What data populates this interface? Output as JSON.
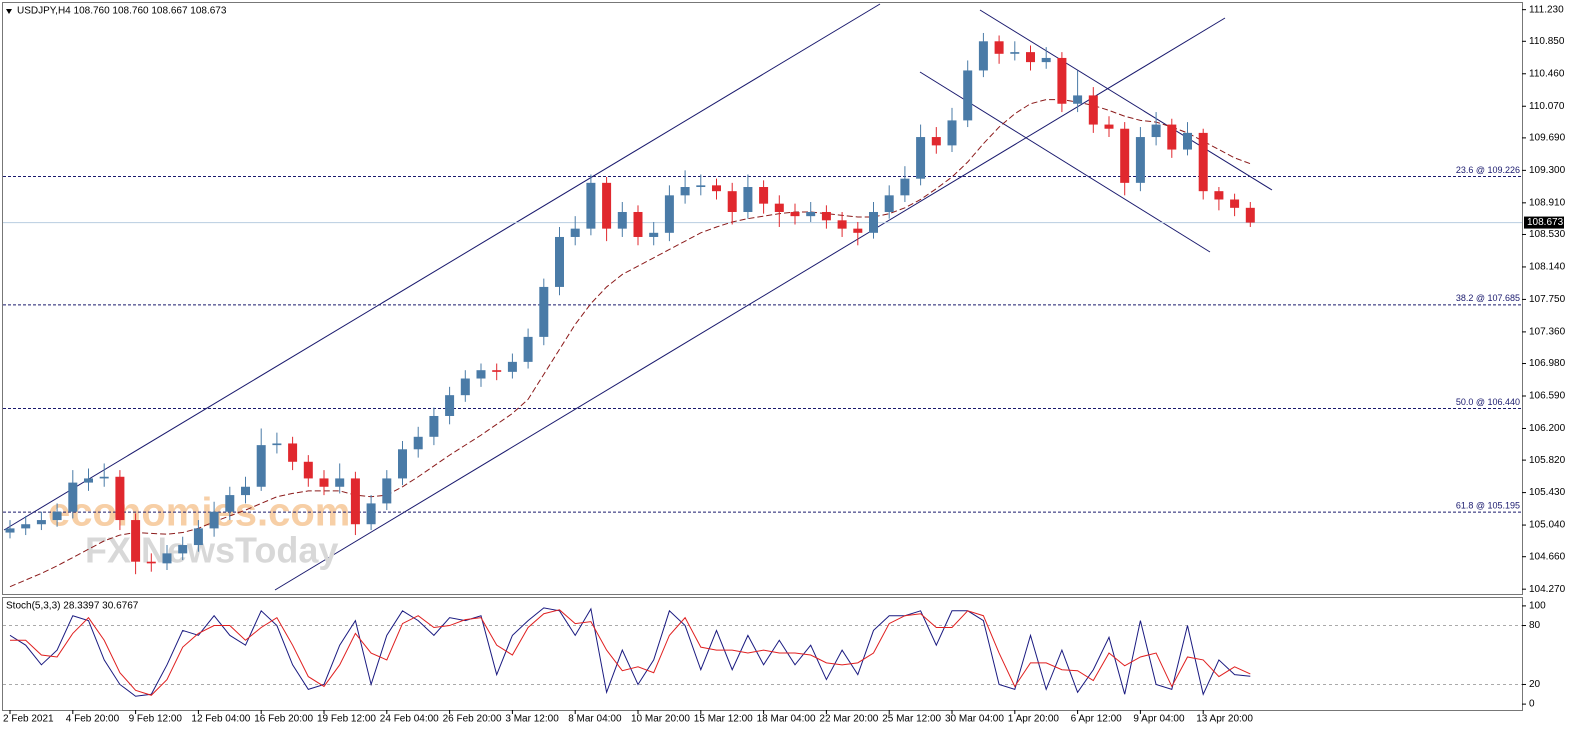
{
  "chart_data": [
    {
      "type": "candlestick",
      "title": "USDJPY,H4  108.760 108.760 108.667 108.673",
      "categories": [
        "2 Feb 2021",
        null,
        null,
        null,
        "4 Feb 20:00",
        null,
        null,
        null,
        "9 Feb 12:00",
        null,
        null,
        null,
        "12 Feb 04:00",
        null,
        null,
        null,
        "16 Feb 20:00",
        null,
        null,
        null,
        "19 Feb 12:00",
        null,
        null,
        null,
        "24 Feb 04:00",
        null,
        null,
        null,
        "26 Feb 20:00",
        null,
        null,
        null,
        "3 Mar 12:00",
        null,
        null,
        null,
        "8 Mar 04:00",
        null,
        null,
        null,
        "10 Mar 20:00",
        null,
        null,
        null,
        "15 Mar 12:00",
        null,
        null,
        null,
        "18 Mar 04:00",
        null,
        null,
        null,
        "22 Mar 20:00",
        null,
        null,
        null,
        "25 Mar 12:00",
        null,
        null,
        null,
        "30 Mar 04:00",
        null,
        null,
        null,
        "1 Apr 20:00",
        null,
        null,
        null,
        "6 Apr 12:00",
        null,
        null,
        null,
        "9 Apr 04:00",
        null,
        null,
        null,
        "13 Apr 20:00",
        null,
        null,
        null
      ],
      "open": [
        104.95,
        105.0,
        105.05,
        105.1,
        105.2,
        105.55,
        105.6,
        105.62,
        105.1,
        104.6,
        104.58,
        104.7,
        104.8,
        105.0,
        105.2,
        105.4,
        105.5,
        106.0,
        106.02,
        105.8,
        105.6,
        105.5,
        105.6,
        105.05,
        105.3,
        105.6,
        105.95,
        106.1,
        106.35,
        106.6,
        106.8,
        106.9,
        106.88,
        107.0,
        107.3,
        107.9,
        108.5,
        108.6,
        109.15,
        108.6,
        108.8,
        108.5,
        108.55,
        109.0,
        109.1,
        109.12,
        109.05,
        108.8,
        109.1,
        108.9,
        108.8,
        108.75,
        108.8,
        108.7,
        108.6,
        108.55,
        108.8,
        109.0,
        109.2,
        109.7,
        109.6,
        109.9,
        110.5,
        110.85,
        110.7,
        110.72,
        110.6,
        110.65,
        110.1,
        110.2,
        109.85,
        109.8,
        109.15,
        109.7,
        109.85,
        109.55,
        109.75,
        109.05,
        108.95,
        108.85
      ],
      "high": [
        105.1,
        105.15,
        105.2,
        105.3,
        105.7,
        105.72,
        105.78,
        105.7,
        105.18,
        104.7,
        104.8,
        104.9,
        105.1,
        105.32,
        105.5,
        105.62,
        106.2,
        106.15,
        106.1,
        105.88,
        105.7,
        105.78,
        105.68,
        105.4,
        105.7,
        106.05,
        106.22,
        106.45,
        106.7,
        106.9,
        106.98,
        106.98,
        107.1,
        107.4,
        108.0,
        108.62,
        108.75,
        109.25,
        109.22,
        108.92,
        108.88,
        108.68,
        109.12,
        109.3,
        109.25,
        109.2,
        109.15,
        109.25,
        109.18,
        109.0,
        108.9,
        108.92,
        108.88,
        108.8,
        108.68,
        108.92,
        109.12,
        109.35,
        109.85,
        109.82,
        110.05,
        110.62,
        110.95,
        110.92,
        110.85,
        110.8,
        110.78,
        110.72,
        110.5,
        110.3,
        109.95,
        109.88,
        109.82,
        110.0,
        109.92,
        109.88,
        109.8,
        109.1,
        109.02,
        108.92
      ],
      "low": [
        104.88,
        104.92,
        104.98,
        105.02,
        105.12,
        105.45,
        105.5,
        104.98,
        104.45,
        104.48,
        104.5,
        104.62,
        104.72,
        104.9,
        105.1,
        105.3,
        105.45,
        105.9,
        105.7,
        105.5,
        105.4,
        105.42,
        104.92,
        104.98,
        105.22,
        105.52,
        105.85,
        106.0,
        106.25,
        106.52,
        106.7,
        106.78,
        106.8,
        106.92,
        107.2,
        107.8,
        108.4,
        108.52,
        108.45,
        108.5,
        108.4,
        108.4,
        108.45,
        108.9,
        109.0,
        108.95,
        108.65,
        108.72,
        108.78,
        108.62,
        108.65,
        108.68,
        108.6,
        108.5,
        108.4,
        108.48,
        108.72,
        108.92,
        109.12,
        109.5,
        109.52,
        109.82,
        110.42,
        110.58,
        110.62,
        110.5,
        110.52,
        110.0,
        110.0,
        109.75,
        109.7,
        109.0,
        109.05,
        109.6,
        109.45,
        109.48,
        108.95,
        108.82,
        108.75,
        108.62
      ],
      "close": [
        105.0,
        105.05,
        105.1,
        105.2,
        105.55,
        105.6,
        105.62,
        105.1,
        104.6,
        104.58,
        104.7,
        104.8,
        105.0,
        105.2,
        105.4,
        105.5,
        106.0,
        106.02,
        105.8,
        105.6,
        105.5,
        105.6,
        105.05,
        105.3,
        105.6,
        105.95,
        106.1,
        106.35,
        106.6,
        106.8,
        106.9,
        106.88,
        107.0,
        107.3,
        107.9,
        108.5,
        108.6,
        109.15,
        108.6,
        108.8,
        108.5,
        108.55,
        109.0,
        109.1,
        109.12,
        109.05,
        108.8,
        109.1,
        108.9,
        108.8,
        108.75,
        108.8,
        108.7,
        108.6,
        108.55,
        108.8,
        109.0,
        109.2,
        109.7,
        109.6,
        109.9,
        110.5,
        110.85,
        110.7,
        110.72,
        110.6,
        110.65,
        110.1,
        110.2,
        109.85,
        109.8,
        109.15,
        109.7,
        109.85,
        109.55,
        109.75,
        109.05,
        108.95,
        108.85,
        108.673
      ],
      "up_color": "#4a7ba7",
      "down_color": "#e0282e",
      "moving_average": {
        "color": "#8b1a1a",
        "values": [
          104.3,
          104.38,
          104.46,
          104.55,
          104.65,
          104.75,
          104.85,
          104.92,
          104.95,
          104.94,
          104.93,
          104.95,
          105.0,
          105.08,
          105.15,
          105.22,
          105.3,
          105.38,
          105.42,
          105.45,
          105.45,
          105.45,
          105.4,
          105.38,
          105.4,
          105.5,
          105.62,
          105.75,
          105.88,
          106.0,
          106.12,
          106.25,
          106.38,
          106.55,
          106.85,
          107.15,
          107.45,
          107.7,
          107.9,
          108.05,
          108.15,
          108.25,
          108.35,
          108.45,
          108.55,
          108.62,
          108.68,
          108.72,
          108.75,
          108.78,
          108.8,
          108.8,
          108.78,
          108.76,
          108.74,
          108.74,
          108.78,
          108.85,
          108.95,
          109.08,
          109.22,
          109.4,
          109.62,
          109.82,
          109.98,
          110.1,
          110.15,
          110.15,
          110.12,
          110.08,
          110.02,
          109.95,
          109.9,
          109.88,
          109.82,
          109.75,
          109.65,
          109.55,
          109.45,
          109.38
        ]
      },
      "ylim": [
        104.2,
        111.31
      ],
      "yticks": [
        {
          "value": 111.23,
          "label": "111.230"
        },
        {
          "value": 110.85,
          "label": "110.850"
        },
        {
          "value": 110.46,
          "label": "110.460"
        },
        {
          "value": 110.07,
          "label": "110.070"
        },
        {
          "value": 109.69,
          "label": "109.690"
        },
        {
          "value": 109.3,
          "label": "109.300"
        },
        {
          "value": 108.91,
          "label": "108.910"
        },
        {
          "value": 108.53,
          "label": "108.530"
        },
        {
          "value": 108.14,
          "label": "108.140"
        },
        {
          "value": 107.75,
          "label": "107.750"
        },
        {
          "value": 107.36,
          "label": "107.360"
        },
        {
          "value": 106.98,
          "label": "106.980"
        },
        {
          "value": 106.59,
          "label": "106.590"
        },
        {
          "value": 106.2,
          "label": "106.200"
        },
        {
          "value": 105.82,
          "label": "105.820"
        },
        {
          "value": 105.43,
          "label": "105.430"
        },
        {
          "value": 105.04,
          "label": "105.040"
        },
        {
          "value": 104.66,
          "label": "104.660"
        },
        {
          "value": 104.27,
          "label": "104.270"
        }
      ],
      "levels": [
        {
          "value": 109.226,
          "label": "23.6 @ 109.226"
        },
        {
          "value": 107.685,
          "label": "38.2 @ 107.685"
        },
        {
          "value": 106.44,
          "label": "50.0 @ 106.440"
        },
        {
          "value": 105.195,
          "label": "61.8 @ 105.195"
        }
      ],
      "last_price": 108.673,
      "watermarks": [
        "economies.com",
        "FX NewsToday"
      ]
    },
    {
      "type": "line",
      "title": "Stoch(5,3,3) 28.3397 30.6767",
      "ylim": [
        -6,
        106
      ],
      "yticks": [
        0,
        20,
        80,
        100
      ],
      "levels": [
        20,
        80
      ],
      "series": [
        {
          "color": "#1a1a80",
          "values": [
            70,
            60,
            40,
            55,
            90,
            85,
            45,
            20,
            8,
            10,
            40,
            75,
            70,
            90,
            70,
            60,
            95,
            80,
            40,
            15,
            20,
            60,
            85,
            20,
            70,
            95,
            85,
            70,
            88,
            85,
            90,
            30,
            70,
            85,
            98,
            95,
            70,
            97,
            12,
            55,
            20,
            45,
            95,
            80,
            35,
            75,
            35,
            70,
            40,
            65,
            40,
            60,
            25,
            55,
            30,
            75,
            90,
            90,
            95,
            60,
            95,
            95,
            85,
            20,
            15,
            70,
            15,
            55,
            12,
            35,
            68,
            10,
            85,
            20,
            15,
            80,
            10,
            45,
            30,
            28.3397
          ]
        },
        {
          "color": "#e02020",
          "values": [
            65,
            65,
            50,
            48,
            72,
            88,
            65,
            32,
            14,
            9,
            25,
            58,
            72,
            80,
            80,
            65,
            78,
            88,
            60,
            28,
            18,
            40,
            72,
            52,
            45,
            82,
            90,
            78,
            80,
            86,
            88,
            60,
            50,
            78,
            92,
            96,
            82,
            84,
            55,
            34,
            38,
            32,
            70,
            88,
            58,
            55,
            55,
            52,
            55,
            52,
            52,
            50,
            42,
            40,
            42,
            52,
            82,
            90,
            92,
            78,
            78,
            95,
            90,
            52,
            18,
            42,
            42,
            35,
            34,
            24,
            52,
            39,
            48,
            52,
            18,
            48,
            45,
            28,
            38,
            30.6767
          ]
        }
      ]
    }
  ]
}
